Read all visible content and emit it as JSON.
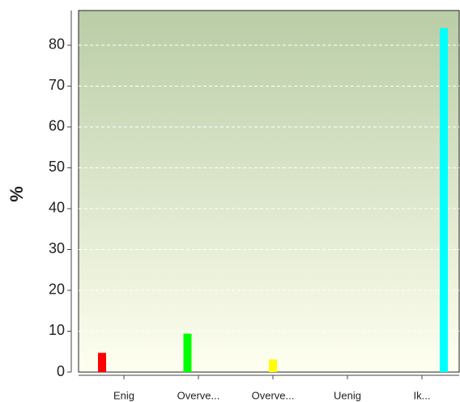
{
  "chart_data": {
    "type": "bar",
    "ylabel": "%",
    "categories": [
      "Enig",
      "Overve...",
      "Overve...",
      "Uenig",
      "Ik..."
    ],
    "values": [
      4.7,
      9.4,
      3.1,
      0,
      84.2
    ],
    "colors": [
      "#ff0000",
      "#00ff00",
      "#ffff00",
      "#0000ff",
      "#00ffff"
    ],
    "ylim": [
      0,
      88.5
    ],
    "yticks": [
      0,
      10,
      20,
      30,
      40,
      50,
      60,
      70,
      80
    ],
    "grid": true
  }
}
